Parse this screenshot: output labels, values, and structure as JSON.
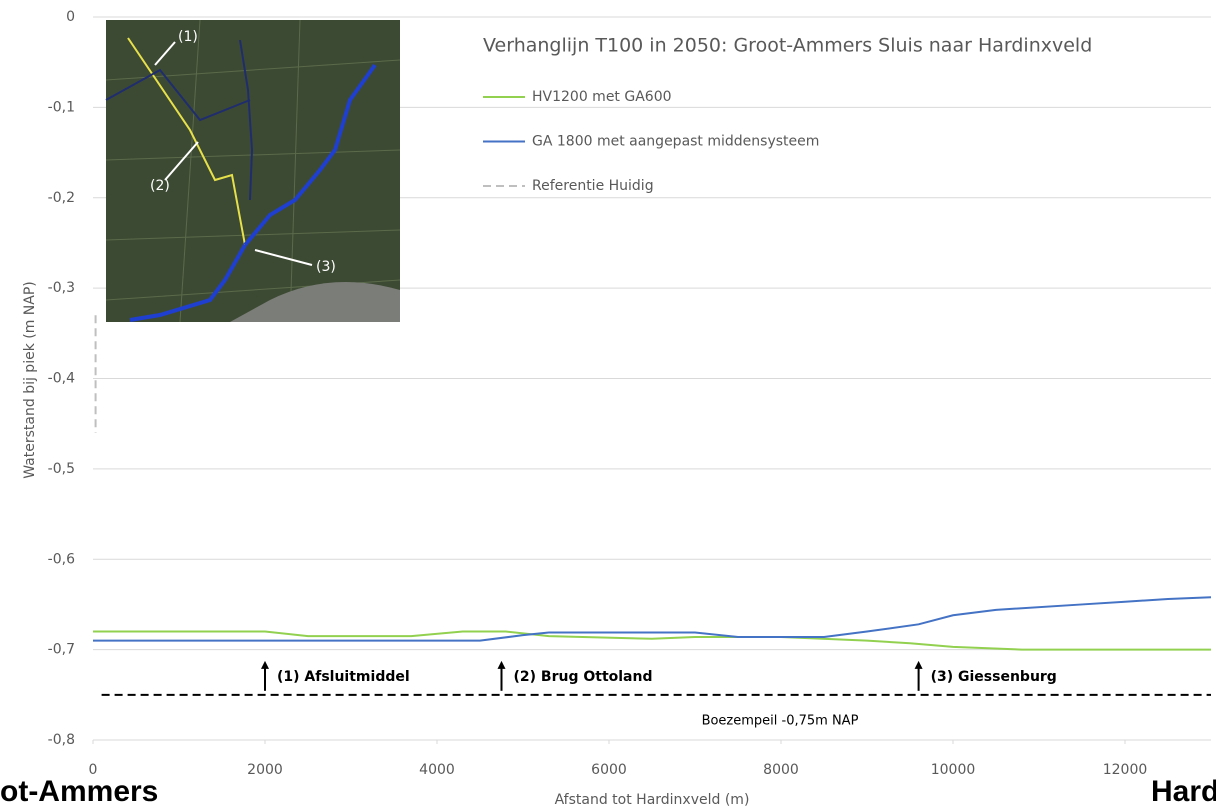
{
  "chart_data": {
    "type": "line",
    "title": "Verhanglijn T100 in 2050: Groot-Ammers Sluis naar Hardinxveld",
    "xlabel": "Afstand tot Hardinxveld (m)",
    "ylabel": "Waterstand bij piek (m NAP)",
    "xlim": [
      0,
      13000
    ],
    "ylim": [
      -0.8,
      0
    ],
    "xticks": [
      0,
      2000,
      4000,
      6000,
      8000,
      10000,
      12000
    ],
    "yticks": [
      {
        "value": -0.8,
        "label": "-0,8"
      },
      {
        "value": -0.7,
        "label": "-0,7"
      },
      {
        "value": -0.6,
        "label": "-0,6"
      },
      {
        "value": -0.5,
        "label": "-0,5"
      },
      {
        "value": -0.4,
        "label": "-0,4"
      },
      {
        "value": -0.3,
        "label": "-0,3"
      },
      {
        "value": -0.2,
        "label": "-0,2"
      },
      {
        "value": -0.1,
        "label": "-0,1"
      },
      0
    ],
    "grid": true,
    "series": [
      {
        "name": "HV1200 met GA600",
        "color": "#92d050",
        "dash": false,
        "x": [
          0,
          2000,
          2500,
          3700,
          4300,
          4800,
          5300,
          6500,
          7000,
          8000,
          9000,
          9500,
          10000,
          10800,
          13000
        ],
        "values": [
          -0.68,
          -0.68,
          -0.685,
          -0.685,
          -0.68,
          -0.68,
          -0.685,
          -0.688,
          -0.686,
          -0.686,
          -0.69,
          -0.693,
          -0.697,
          -0.7,
          -0.7
        ]
      },
      {
        "name": "GA 1800 met aangepast middensysteem",
        "color": "#4472c4",
        "dash": false,
        "x": [
          0,
          4500,
          5000,
          5300,
          7000,
          7500,
          8500,
          9000,
          9600,
          10000,
          10500,
          11500,
          12000,
          12500,
          13000
        ],
        "values": [
          -0.69,
          -0.69,
          -0.684,
          -0.681,
          -0.681,
          -0.686,
          -0.686,
          -0.68,
          -0.672,
          -0.662,
          -0.656,
          -0.65,
          -0.647,
          -0.644,
          -0.642
        ]
      },
      {
        "name": "Referentie Huidig",
        "color": "#bfbfbf",
        "dash": true,
        "x": [
          30,
          30,
          30
        ],
        "values": [
          -0.33,
          -0.4,
          -0.46
        ]
      }
    ],
    "reference_line": {
      "label": "Boezempeil -0,75m NAP",
      "y": -0.75,
      "x": [
        100,
        13000
      ]
    },
    "annotations": [
      {
        "text": "(1) Afsluitmiddel",
        "x": 2000
      },
      {
        "text": "(2) Brug Ottoland",
        "x": 4750
      },
      {
        "text": "(3) Giessenburg",
        "x": 9600
      }
    ],
    "inset_labels": [
      "(1)",
      "(2)",
      "(3)"
    ],
    "edge_labels": [
      "ot-Ammers",
      "Hard"
    ]
  }
}
